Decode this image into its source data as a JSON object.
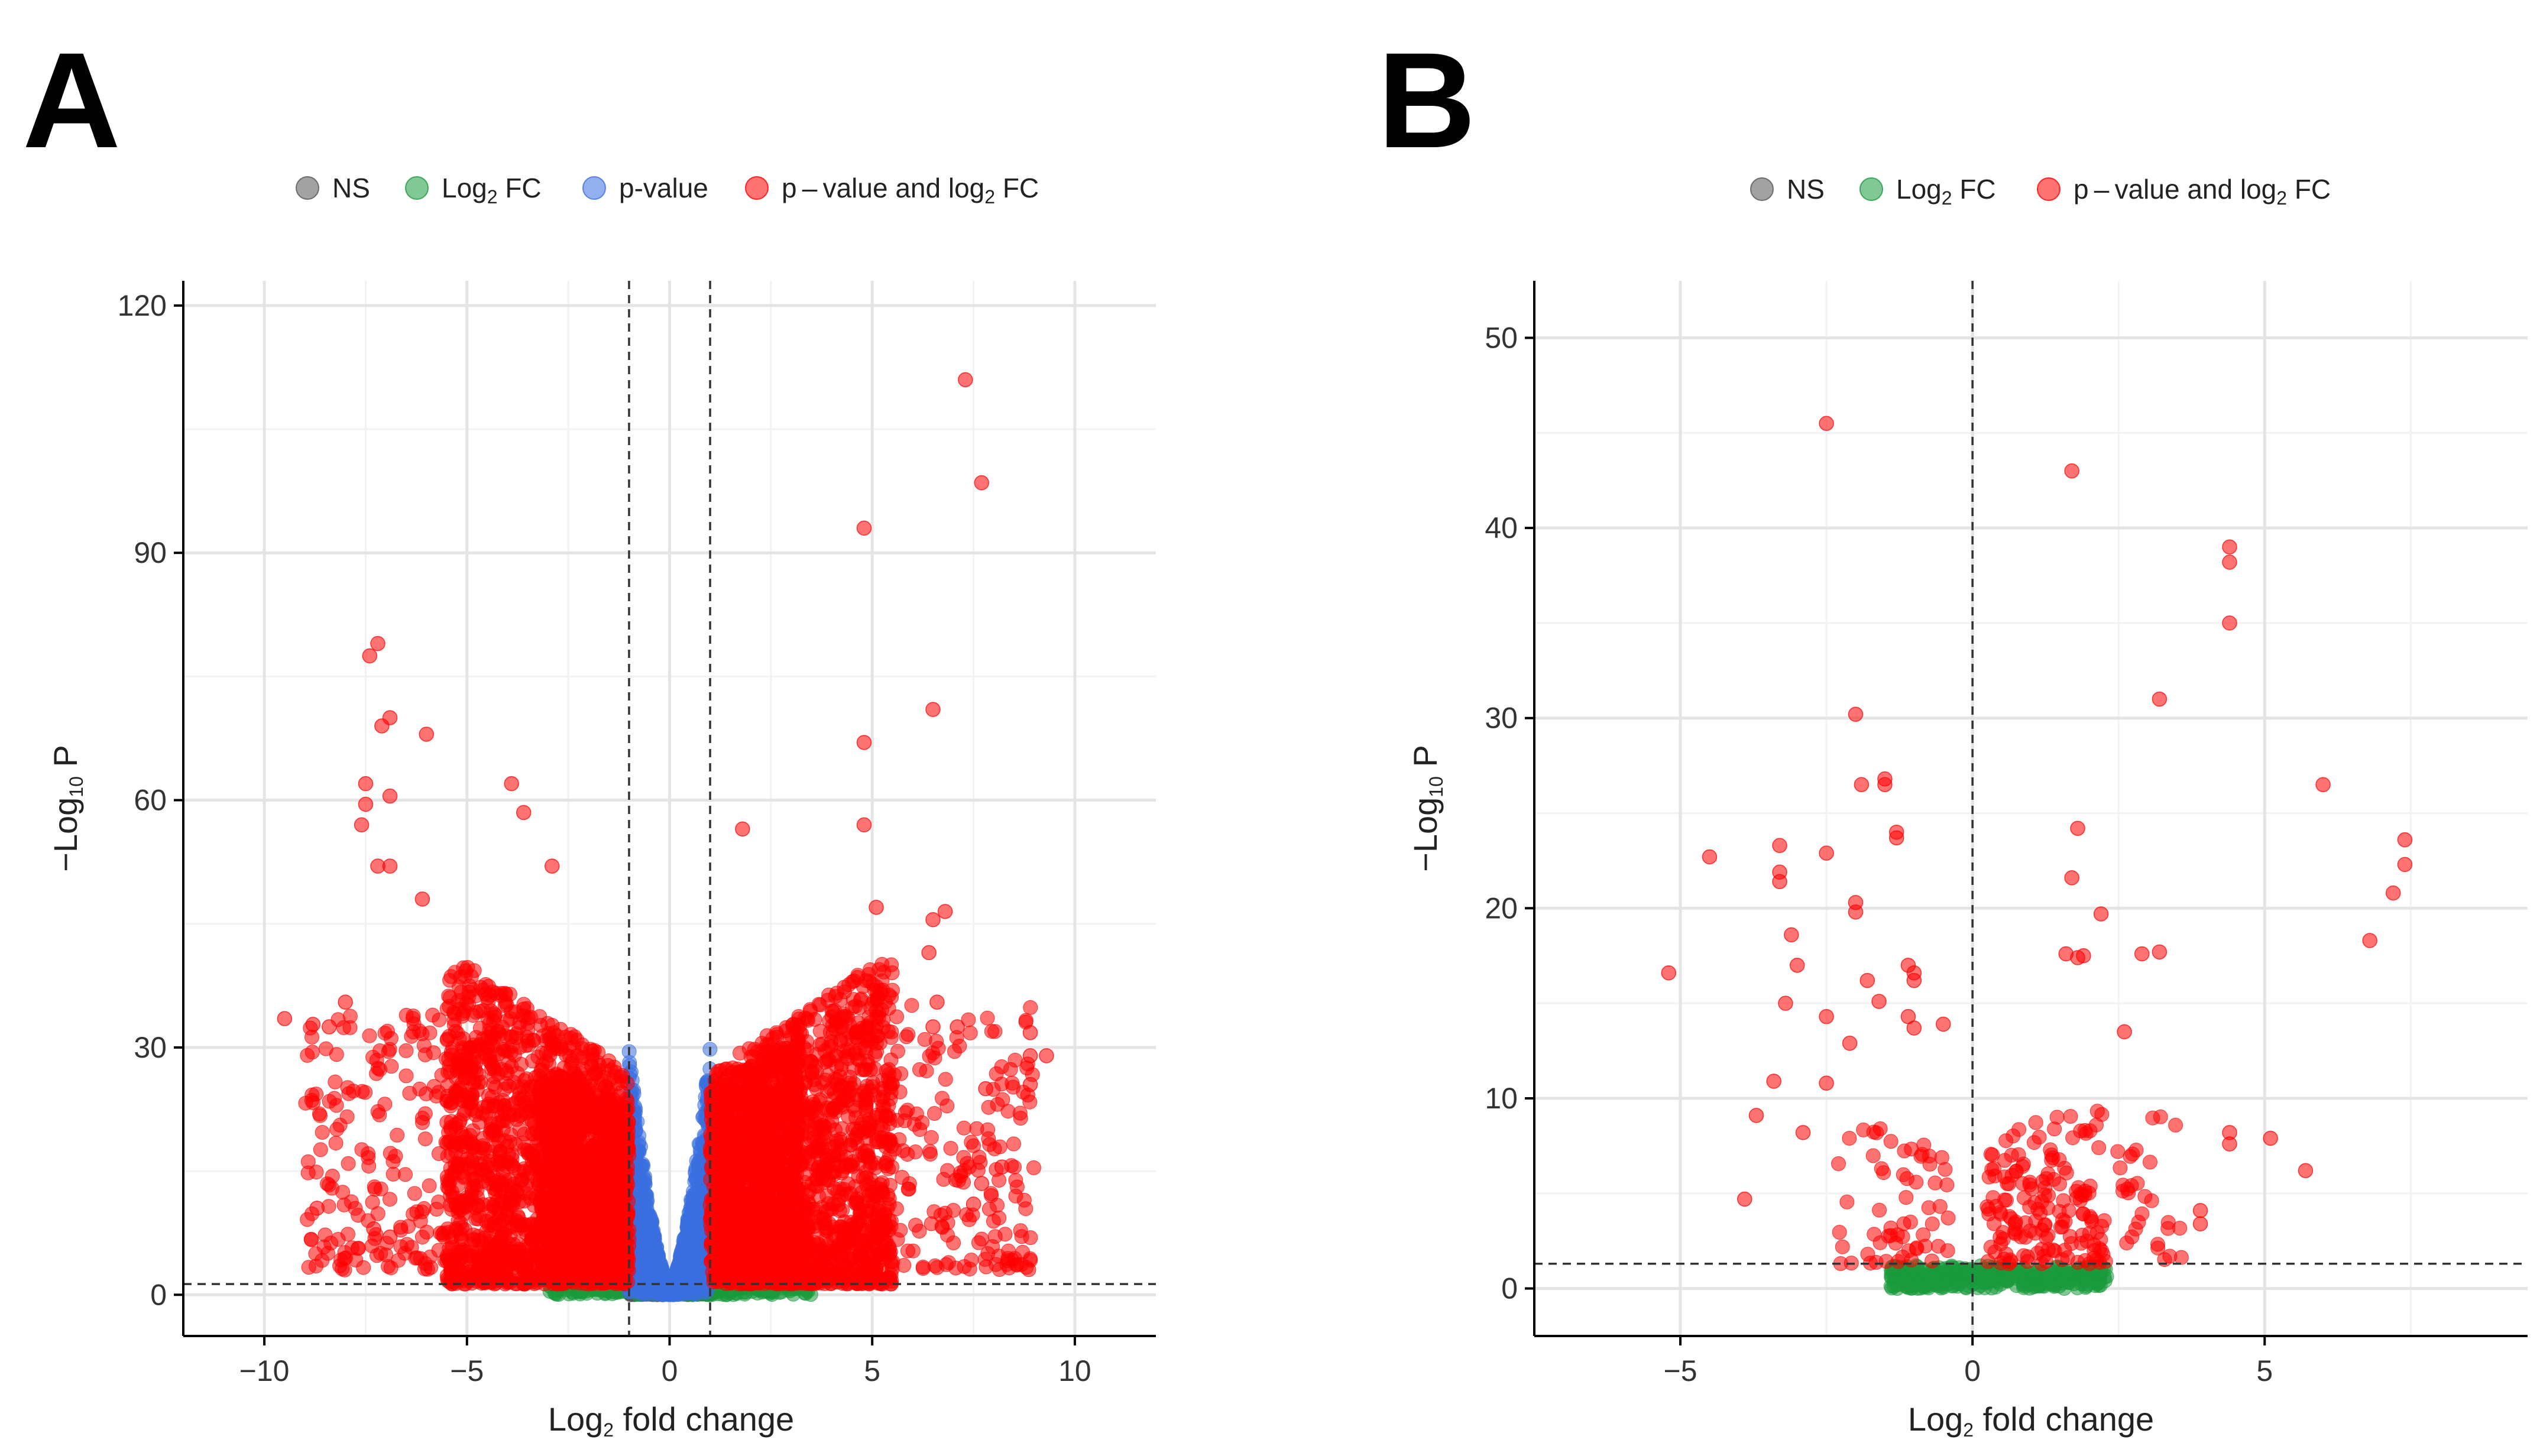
{
  "panels": {
    "a": {
      "letter": "A"
    },
    "b": {
      "letter": "B"
    }
  },
  "colors": {
    "ns": "#555555",
    "log2fc": "#1a9a3c",
    "pvalue": "#3a6fe0",
    "both": "#ff0000",
    "grid_major": "#e4e4e4",
    "grid_minor": "#f2f2f2",
    "axis": "#000000",
    "threshold": "#333333"
  },
  "chart_data": [
    {
      "panel": "A",
      "type": "scatter",
      "title": "",
      "xlabel": {
        "pre": "Log",
        "sub": "2",
        "post": " fold change"
      },
      "ylabel": {
        "pre": "−Log",
        "sub": "10",
        "post": " P"
      },
      "xlim": [
        -12,
        12
      ],
      "ylim": [
        -5,
        123
      ],
      "xticks": [
        -10,
        -5,
        0,
        5,
        10
      ],
      "xtick_labels": [
        "−10",
        "−5",
        "0",
        "5",
        "10"
      ],
      "yticks": [
        0,
        30,
        60,
        90,
        120
      ],
      "ytick_labels": [
        "0",
        "30",
        "60",
        "90",
        "120"
      ],
      "grid": true,
      "legend_position": "top",
      "legend": [
        {
          "key": "ns",
          "pre": "NS",
          "sub": "",
          "post": ""
        },
        {
          "key": "log2fc",
          "pre": "Log",
          "sub": "2",
          "post": " FC"
        },
        {
          "key": "pvalue",
          "pre": "p-value",
          "sub": "",
          "post": ""
        },
        {
          "key": "both",
          "pre": "p – value and log",
          "sub": "2",
          "post": " FC"
        }
      ],
      "thresholds": {
        "log2fc": [
          -1,
          1
        ],
        "neg_log10_p": 1.3
      },
      "highlight_points": [
        [
          7.3,
          111
        ],
        [
          7.7,
          98.5
        ],
        [
          4.8,
          93
        ],
        [
          -7.2,
          79
        ],
        [
          -7.4,
          77.5
        ],
        [
          6.5,
          71
        ],
        [
          -6.9,
          70
        ],
        [
          -7.1,
          69
        ],
        [
          -6,
          68
        ],
        [
          4.8,
          67
        ],
        [
          -7.5,
          62
        ],
        [
          -3.9,
          62
        ],
        [
          -7.5,
          59.5
        ],
        [
          -6.9,
          60.5
        ],
        [
          -7.6,
          57
        ],
        [
          -3.6,
          58.5
        ],
        [
          4.8,
          57
        ],
        [
          1.8,
          56.5
        ],
        [
          -7.2,
          52
        ],
        [
          -6.9,
          52
        ],
        [
          -2.9,
          52
        ],
        [
          5.1,
          47
        ],
        [
          6.8,
          46.5
        ],
        [
          6.5,
          45.5
        ],
        [
          -6.1,
          48
        ],
        [
          6.4,
          41.5
        ],
        [
          -9.5,
          33.5
        ],
        [
          -8.8,
          32.8
        ],
        [
          -8.4,
          32.5
        ],
        [
          -8,
          35.5
        ],
        [
          8.9,
          31.8
        ],
        [
          9.3,
          29
        ],
        [
          8.9,
          29
        ],
        [
          7.8,
          25
        ],
        [
          8.9,
          25.5
        ],
        [
          8.2,
          15.5
        ],
        [
          7.7,
          13.5
        ],
        [
          7.5,
          11
        ],
        [
          -8.7,
          10.5
        ],
        [
          -7.3,
          8
        ],
        [
          -6.9,
          7
        ],
        [
          -5.4,
          3
        ],
        [
          7.1,
          32.5
        ],
        [
          6.6,
          35.5
        ],
        [
          6.5,
          32.5
        ]
      ],
      "clouds": [
        {
          "category": "both",
          "n": 1500,
          "x": [
            -5.5,
            -1.0
          ],
          "y": [
            1.3,
            42
          ],
          "skew": 1.6
        },
        {
          "category": "both",
          "n": 900,
          "x": [
            -3.2,
            -1.0
          ],
          "y": [
            3,
            34
          ],
          "skew": 1.1
        },
        {
          "category": "both",
          "n": 1500,
          "x": [
            1.0,
            5.5
          ],
          "y": [
            1.3,
            42
          ],
          "skew": 1.6
        },
        {
          "category": "both",
          "n": 900,
          "x": [
            1.0,
            3.2
          ],
          "y": [
            3,
            38
          ],
          "skew": 1.1
        },
        {
          "category": "both",
          "n": 200,
          "x": [
            -9.0,
            -5.0
          ],
          "y": [
            3,
            34
          ],
          "skew": 1.4
        },
        {
          "category": "both",
          "n": 200,
          "x": [
            5.0,
            9.0
          ],
          "y": [
            3,
            36
          ],
          "skew": 1.4
        },
        {
          "category": "pvalue",
          "n": 1400,
          "x": [
            -1.0,
            1.0
          ],
          "y": [
            1.3,
            30
          ],
          "shape": "v"
        },
        {
          "category": "log2fc",
          "n": 220,
          "x": [
            -3.0,
            3.5
          ],
          "y": [
            0,
            1.2
          ],
          "skew": 1
        },
        {
          "category": "ns",
          "n": 600,
          "x": [
            -1.0,
            1.0
          ],
          "y": [
            0,
            1.25
          ],
          "skew": 1
        }
      ]
    },
    {
      "panel": "B",
      "type": "scatter",
      "title": "",
      "xlabel": {
        "pre": "Log",
        "sub": "2",
        "post": " fold change"
      },
      "ylabel": {
        "pre": "−Log",
        "sub": "10",
        "post": " P"
      },
      "xlim": [
        -7.5,
        9.5
      ],
      "ylim": [
        -2.5,
        53
      ],
      "xticks": [
        -5,
        0,
        5
      ],
      "xtick_labels": [
        "−5",
        "0",
        "5"
      ],
      "yticks": [
        0,
        10,
        20,
        30,
        40,
        50
      ],
      "ytick_labels": [
        "0",
        "10",
        "20",
        "30",
        "40",
        "50"
      ],
      "grid": true,
      "legend_position": "top",
      "legend": [
        {
          "key": "ns",
          "pre": "NS",
          "sub": "",
          "post": ""
        },
        {
          "key": "log2fc",
          "pre": "Log",
          "sub": "2",
          "post": " FC"
        },
        {
          "key": "both",
          "pre": "p – value and log",
          "sub": "2",
          "post": " FC"
        }
      ],
      "thresholds": {
        "log2fc": [
          0
        ],
        "neg_log10_p": 1.3
      },
      "highlight_points": [
        [
          -2.5,
          45.5
        ],
        [
          1.7,
          43
        ],
        [
          4.4,
          39
        ],
        [
          4.4,
          38.2
        ],
        [
          4.4,
          35
        ],
        [
          3.2,
          31
        ],
        [
          -2.0,
          30.2
        ],
        [
          6.0,
          26.5
        ],
        [
          -1.5,
          26.8
        ],
        [
          -1.5,
          26.5
        ],
        [
          -1.9,
          26.5
        ],
        [
          1.8,
          24.2
        ],
        [
          7.4,
          23.6
        ],
        [
          7.4,
          22.3
        ],
        [
          7.2,
          20.8
        ],
        [
          6.8,
          18.3
        ],
        [
          -3.3,
          23.3
        ],
        [
          -3.3,
          21.9
        ],
        [
          -3.3,
          21.4
        ],
        [
          -4.5,
          22.7
        ],
        [
          -2.5,
          22.9
        ],
        [
          -1.3,
          24
        ],
        [
          -1.3,
          23.7
        ],
        [
          -5.2,
          16.6
        ],
        [
          -3.1,
          18.6
        ],
        [
          -2.0,
          20.3
        ],
        [
          -2.0,
          19.8
        ],
        [
          1.7,
          21.6
        ],
        [
          2.2,
          19.7
        ],
        [
          3.2,
          17.7
        ],
        [
          2.9,
          17.6
        ],
        [
          -3.0,
          17
        ],
        [
          -1.8,
          16.2
        ],
        [
          -1.6,
          15.1
        ],
        [
          -3.2,
          15
        ],
        [
          -2.5,
          14.3
        ],
        [
          -2.1,
          12.9
        ],
        [
          -1.1,
          17
        ],
        [
          -1.0,
          16.6
        ],
        [
          -1.0,
          16.2
        ],
        [
          -1.1,
          14.3
        ],
        [
          -1.0,
          13.7
        ],
        [
          -0.5,
          13.9
        ],
        [
          2.6,
          13.5
        ],
        [
          4.4,
          8.2
        ],
        [
          4.4,
          7.6
        ],
        [
          5.1,
          7.9
        ],
        [
          5.7,
          6.2
        ],
        [
          3.9,
          4.1
        ],
        [
          3.9,
          3.4
        ],
        [
          -3.4,
          10.9
        ],
        [
          -3.7,
          9.1
        ],
        [
          -3.9,
          4.7
        ],
        [
          -2.9,
          8.2
        ],
        [
          -2.5,
          10.8
        ],
        [
          1.9,
          17.5
        ],
        [
          1.6,
          17.6
        ],
        [
          1.8,
          17.4
        ]
      ],
      "clouds": [
        {
          "category": "both",
          "n": 160,
          "x": [
            0.25,
            2.3
          ],
          "y": [
            1.3,
            13
          ],
          "skew": 1.5
        },
        {
          "category": "both",
          "n": 60,
          "x": [
            -2.3,
            -0.15
          ],
          "y": [
            1.3,
            12
          ],
          "skew": 1.5
        },
        {
          "category": "both",
          "n": 30,
          "x": [
            2.3,
            3.6
          ],
          "y": [
            1.5,
            11
          ],
          "skew": 1.2
        },
        {
          "category": "log2fc",
          "n": 320,
          "x": [
            -1.4,
            2.3
          ],
          "y": [
            0,
            1.2
          ],
          "skew": 1
        }
      ]
    }
  ]
}
